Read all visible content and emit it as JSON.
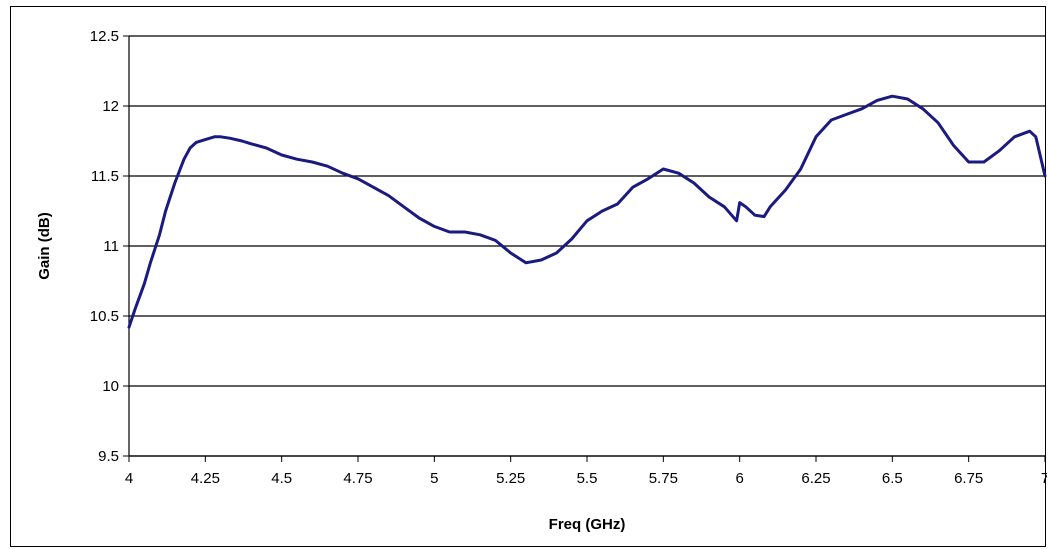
{
  "chart_data": {
    "type": "line",
    "title": "",
    "xlabel": "Freq (GHz)",
    "ylabel": "Gain (dB)",
    "xlim": [
      4,
      7
    ],
    "ylim": [
      9.5,
      12.5
    ],
    "x_ticks": [
      "4",
      "4.25",
      "4.5",
      "4.75",
      "5",
      "5.25",
      "5.5",
      "5.75",
      "6",
      "6.25",
      "6.5",
      "6.75",
      "7"
    ],
    "y_ticks": [
      "9.5",
      "10",
      "10.5",
      "11",
      "11.5",
      "12",
      "12.5"
    ],
    "grid": "horizontal",
    "legend": "none",
    "colors": {
      "line": "#1a1a80",
      "grid": "#000000",
      "axis": "#000000"
    },
    "series": [
      {
        "x": [
          4.0,
          4.02,
          4.05,
          4.07,
          4.1,
          4.12,
          4.15,
          4.18,
          4.2,
          4.22,
          4.25,
          4.28,
          4.3,
          4.33,
          4.37,
          4.4,
          4.45,
          4.5,
          4.55,
          4.6,
          4.65,
          4.7,
          4.75,
          4.8,
          4.85,
          4.9,
          4.95,
          5.0,
          5.05,
          5.1,
          5.15,
          5.2,
          5.25,
          5.3,
          5.35,
          5.4,
          5.45,
          5.5,
          5.55,
          5.6,
          5.65,
          5.7,
          5.75,
          5.8,
          5.85,
          5.9,
          5.95,
          5.99,
          6.0,
          6.02,
          6.05,
          6.08,
          6.1,
          6.15,
          6.2,
          6.25,
          6.3,
          6.35,
          6.4,
          6.45,
          6.5,
          6.55,
          6.6,
          6.65,
          6.7,
          6.75,
          6.8,
          6.85,
          6.9,
          6.95,
          6.97,
          7.0
        ],
        "y": [
          10.42,
          10.55,
          10.73,
          10.88,
          11.08,
          11.25,
          11.45,
          11.62,
          11.7,
          11.74,
          11.76,
          11.78,
          11.78,
          11.77,
          11.75,
          11.73,
          11.7,
          11.65,
          11.62,
          11.6,
          11.57,
          11.52,
          11.48,
          11.42,
          11.36,
          11.28,
          11.2,
          11.14,
          11.1,
          11.1,
          11.08,
          11.04,
          10.95,
          10.88,
          10.9,
          10.95,
          11.05,
          11.18,
          11.25,
          11.3,
          11.42,
          11.48,
          11.55,
          11.52,
          11.45,
          11.35,
          11.28,
          11.18,
          11.31,
          11.28,
          11.22,
          11.21,
          11.28,
          11.4,
          11.55,
          11.78,
          11.9,
          11.94,
          11.98,
          12.04,
          12.07,
          12.05,
          11.98,
          11.88,
          11.72,
          11.6,
          11.6,
          11.68,
          11.78,
          11.82,
          11.78,
          11.5
        ]
      }
    ]
  }
}
